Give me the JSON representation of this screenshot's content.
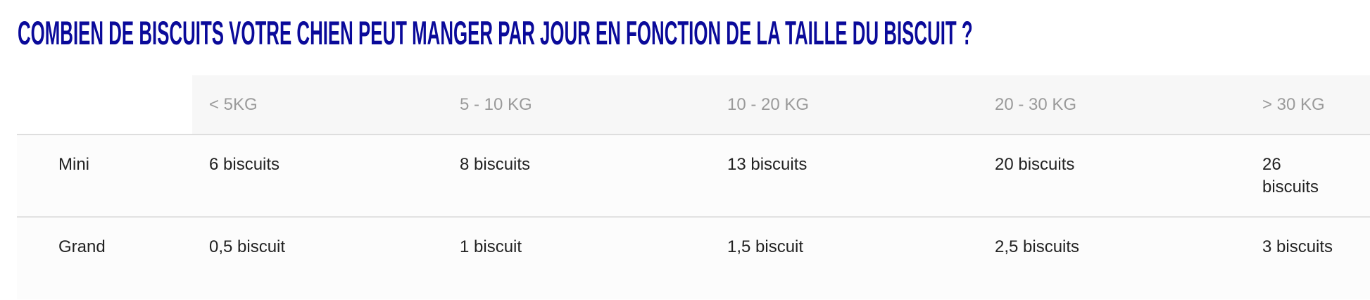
{
  "title": "COMBIEN DE BISCUITS VOTRE CHIEN PEUT MANGER PAR JOUR EN FONCTION DE LA TAILLE DU BISCUIT ?",
  "table": {
    "headers": [
      "",
      "< 5KG",
      "5 - 10 KG",
      "10 - 20 KG",
      "20 - 30 KG",
      "> 30 KG"
    ],
    "rows": [
      [
        "Mini",
        "6 biscuits",
        "8 biscuits",
        "13 biscuits",
        "20 biscuits",
        "26 biscuits"
      ],
      [
        "Grand",
        "0,5 biscuit",
        "1 biscuit",
        "1,5 biscuit",
        "2,5 biscuits",
        "3 biscuits"
      ]
    ]
  },
  "colors": {
    "title": "#0a0a9a",
    "header_text": "#9a9a9a",
    "header_bg": "#f7f7f7"
  }
}
